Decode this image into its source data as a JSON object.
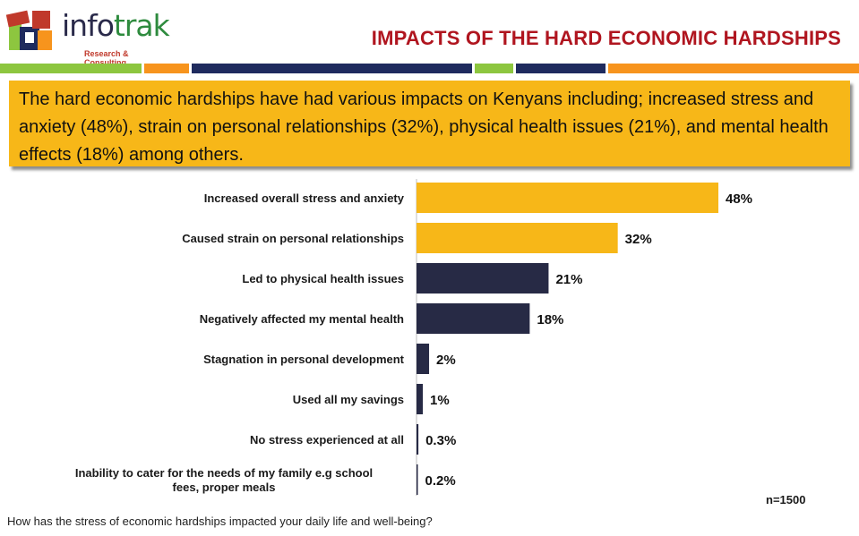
{
  "header": {
    "logo_main": "info",
    "logo_accent": "trak",
    "logo_sub": "Research & Consulting",
    "title": "IMPACTS OF THE HARD ECONOMIC HARDSHIPS"
  },
  "summary": "The hard economic hardships have had various impacts on Kenyans including; increased stress and anxiety (48%), strain on personal relationships (32%), physical health issues (21%), and mental health effects (18%) among others.",
  "colors": {
    "highlight": "#f7b718",
    "dark": "#272a45",
    "title": "#b0151f",
    "stripe_green": "#8dc63f",
    "stripe_orange": "#f7941d",
    "stripe_navy": "#1f2b5e"
  },
  "chart_data": {
    "type": "bar",
    "orientation": "horizontal",
    "categories": [
      "Increased overall stress and anxiety",
      "Caused strain on personal relationships",
      "Led to physical health issues",
      "Negatively affected my mental health",
      "Stagnation in personal development",
      "Used all my savings",
      "No stress experienced at all",
      "Inability to cater for the needs of my family e.g school fees, proper meals"
    ],
    "values": [
      48,
      32,
      21,
      18,
      2,
      1,
      0.3,
      0.2
    ],
    "value_labels": [
      "48%",
      "32%",
      "21%",
      "18%",
      "2%",
      "1%",
      "0.3%",
      "0.2%"
    ],
    "bar_colors": [
      "highlight",
      "highlight",
      "dark",
      "dark",
      "dark",
      "dark",
      "dark",
      "dark"
    ],
    "xlim": [
      0,
      50
    ],
    "grid": false
  },
  "footer": {
    "sample": "n=1500",
    "question": "How has the stress of economic hardships impacted your daily life and well-being?"
  }
}
